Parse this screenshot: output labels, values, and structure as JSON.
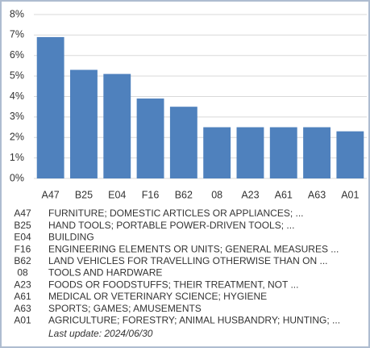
{
  "chart_data": {
    "type": "bar",
    "categories": [
      "A47",
      "B25",
      "E04",
      "F16",
      "B62",
      "08",
      "A23",
      "A61",
      "A63",
      "A01"
    ],
    "values": [
      6.9,
      5.3,
      5.1,
      3.9,
      3.5,
      2.5,
      2.5,
      2.5,
      2.5,
      2.3
    ],
    "color": "#4f81bd",
    "ylim": [
      0,
      8
    ],
    "yticks": [
      {
        "value": 0,
        "label": "0%"
      },
      {
        "value": 1,
        "label": "1%"
      },
      {
        "value": 2,
        "label": "2%"
      },
      {
        "value": 3,
        "label": "3%"
      },
      {
        "value": 4,
        "label": "4%"
      },
      {
        "value": 5,
        "label": "5%"
      },
      {
        "value": 6,
        "label": "6%"
      },
      {
        "value": 7,
        "label": "7%"
      },
      {
        "value": 8,
        "label": "8%"
      }
    ],
    "grid": true,
    "descriptions": [
      "FURNITURE; DOMESTIC ARTICLES OR APPLIANCES; ...",
      "HAND TOOLS; PORTABLE POWER-DRIVEN TOOLS; ...",
      "BUILDING",
      "ENGINEERING ELEMENTS OR UNITS; GENERAL MEASURES ...",
      "LAND VEHICLES FOR TRAVELLING OTHERWISE THAN ON ...",
      "TOOLS AND HARDWARE",
      "FOODS OR FOODSTUFFS; THEIR TREATMENT, NOT ...",
      "MEDICAL OR VETERINARY SCIENCE; HYGIENE",
      "SPORTS; GAMES; AMUSEMENTS",
      "AGRICULTURE; FORESTRY; ANIMAL HUSBANDRY; HUNTING; ..."
    ],
    "note": "Last update:  2024/06/30"
  }
}
